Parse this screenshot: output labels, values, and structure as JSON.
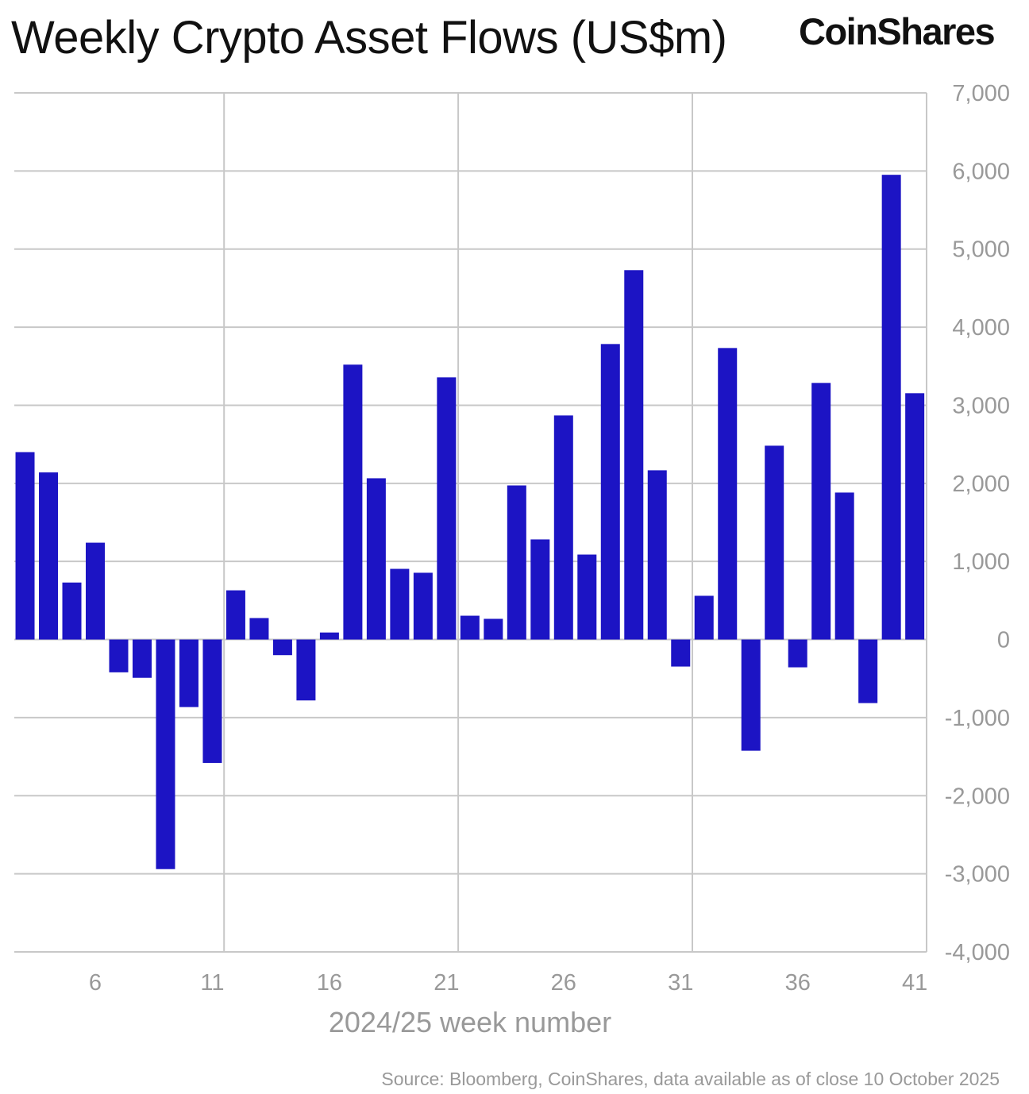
{
  "title": "Weekly Crypto Asset Flows (US$m)",
  "logo_text": "CoinShares",
  "source": "Source: Bloomberg, CoinShares, data available as of close 10 October 2025",
  "colors": {
    "bar": "#1c14c4",
    "grid": "#c8c8c8",
    "text": "#999999"
  },
  "chart_data": {
    "type": "bar",
    "title": "Weekly Crypto Asset Flows (US$m)",
    "xlabel": "2024/25 week number",
    "ylabel": "",
    "ylim": [
      -4000,
      7000
    ],
    "yticks": [
      7000,
      6000,
      5000,
      4000,
      3000,
      2000,
      1000,
      0,
      -1000,
      -2000,
      -3000,
      -4000
    ],
    "ytick_labels": [
      "7,000",
      "6,000",
      "5,000",
      "4,000",
      "3,000",
      "2,000",
      "1,000",
      "0",
      "-1,000",
      "-2,000",
      "-3,000",
      "-4,000"
    ],
    "xticks": [
      6,
      11,
      16,
      21,
      26,
      31,
      36,
      41
    ],
    "xtick_labels": [
      "6",
      "11",
      "16",
      "21",
      "26",
      "31",
      "36",
      "41"
    ],
    "y_axis_position": "right",
    "grid": true,
    "categories": [
      3,
      4,
      5,
      6,
      7,
      8,
      9,
      10,
      11,
      12,
      13,
      14,
      15,
      16,
      17,
      18,
      19,
      20,
      21,
      22,
      23,
      24,
      25,
      26,
      27,
      28,
      29,
      30,
      31,
      32,
      33,
      34,
      35,
      36,
      37,
      38,
      39,
      40,
      41
    ],
    "values": [
      2400,
      2140,
      730,
      1240,
      -420,
      -490,
      -2940,
      -865,
      -1580,
      630,
      275,
      -200,
      -780,
      90,
      3520,
      2065,
      905,
      855,
      3357,
      305,
      265,
      1973,
      1282,
      2869,
      1088,
      3784,
      4730,
      2167,
      -346,
      560,
      3733,
      -1424,
      2482,
      -356,
      3286,
      1882,
      -814,
      5951,
      3154
    ]
  }
}
